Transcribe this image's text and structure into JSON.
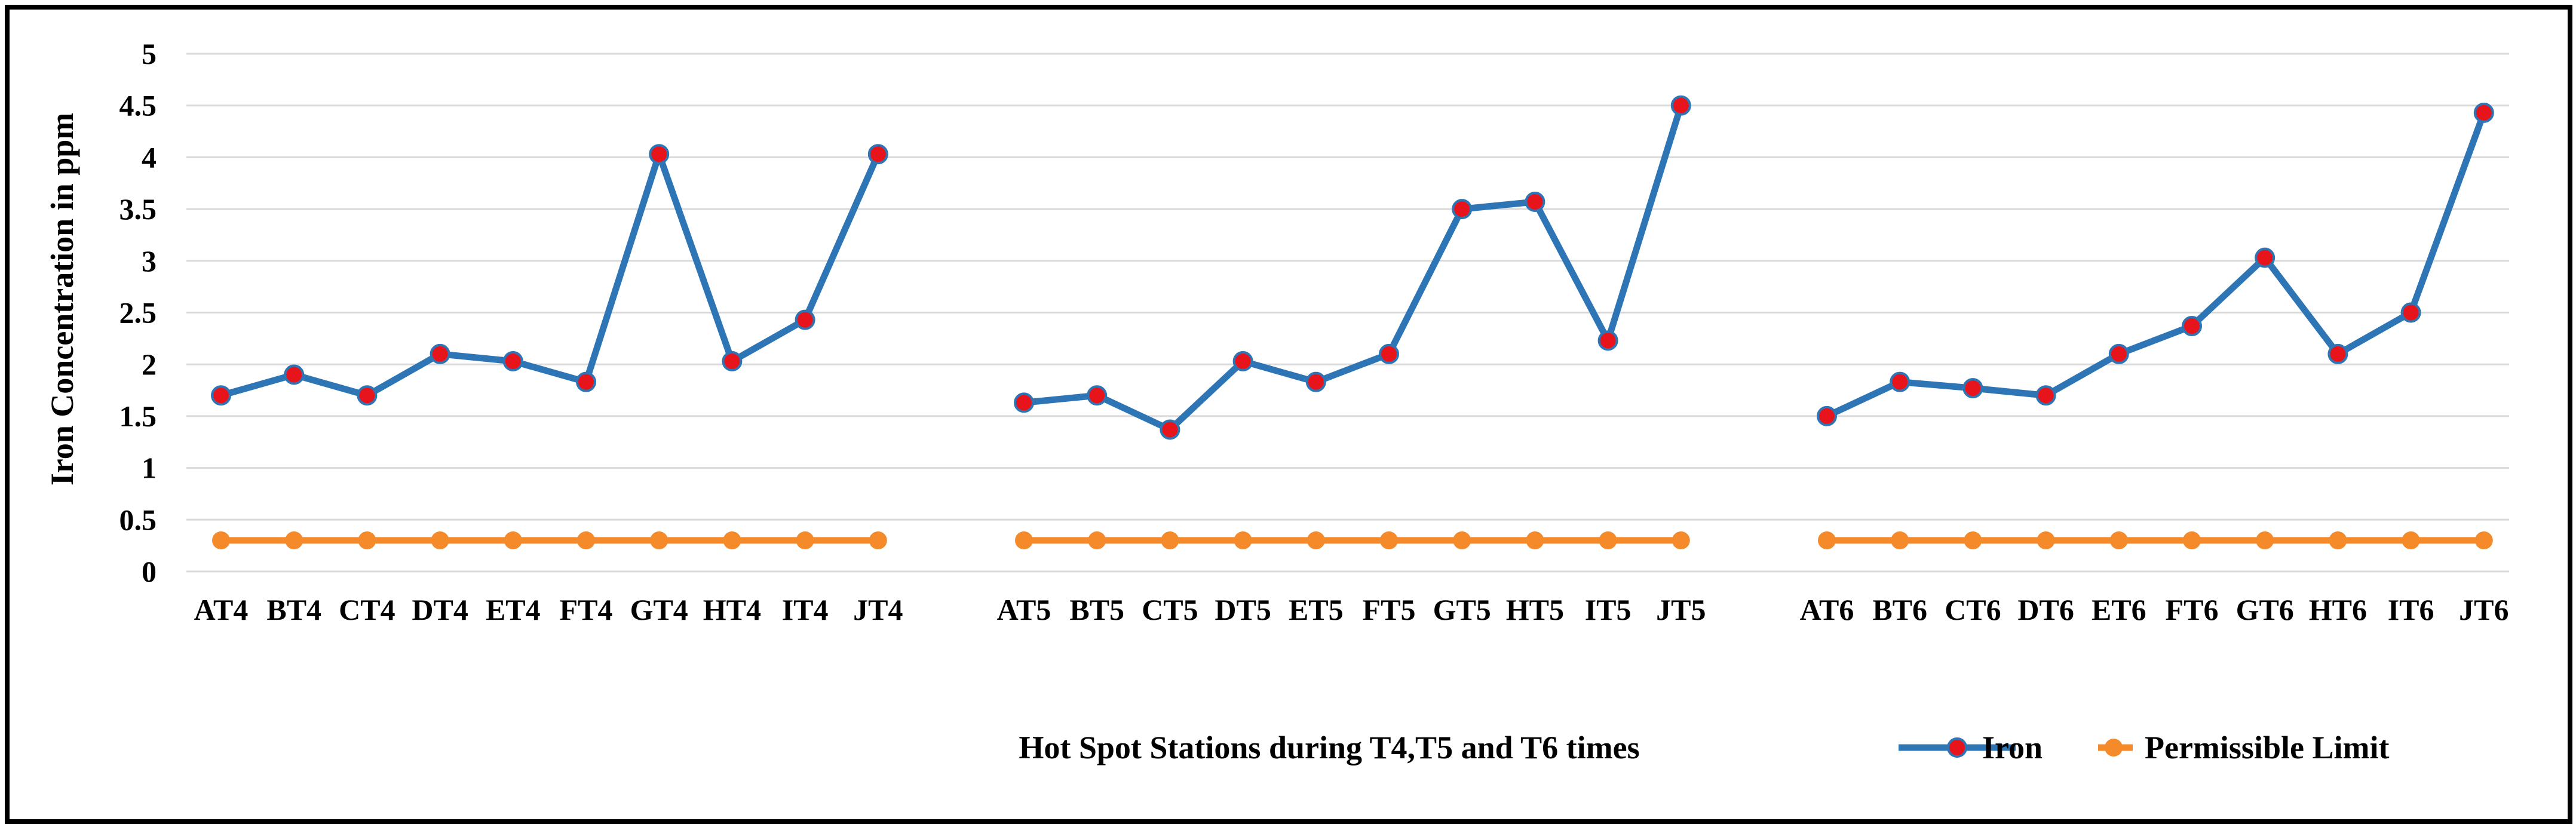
{
  "chart_data": {
    "type": "line",
    "title": "",
    "xlabel": "Hot Spot Stations during T4,T5 and T6 times",
    "ylabel": "Iron Concentration in ppm",
    "ylim": [
      0,
      5
    ],
    "yticks": [
      "0",
      "0.5",
      "1",
      "1.5",
      "2",
      "2.5",
      "3",
      "3.5",
      "4",
      "4.5",
      "5"
    ],
    "grid": "horizontal",
    "legend": "bottom-right",
    "groups": [
      {
        "categories": [
          "AT4",
          "BT4",
          "CT4",
          "DT4",
          "ET4",
          "FT4",
          "GT4",
          "HT4",
          "IT4",
          "JT4"
        ],
        "iron": [
          1.7,
          1.9,
          1.7,
          2.1,
          2.03,
          1.83,
          4.03,
          2.03,
          2.43,
          4.03
        ],
        "limit": [
          0.3,
          0.3,
          0.3,
          0.3,
          0.3,
          0.3,
          0.3,
          0.3,
          0.3,
          0.3
        ]
      },
      {
        "categories": [
          "AT5",
          "BT5",
          "CT5",
          "DT5",
          "ET5",
          "FT5",
          "GT5",
          "HT5",
          "IT5",
          "JT5"
        ],
        "iron": [
          1.63,
          1.7,
          1.37,
          2.03,
          1.83,
          2.1,
          3.5,
          3.57,
          2.23,
          4.5
        ],
        "limit": [
          0.3,
          0.3,
          0.3,
          0.3,
          0.3,
          0.3,
          0.3,
          0.3,
          0.3,
          0.3
        ]
      },
      {
        "categories": [
          "AT6",
          "BT6",
          "CT6",
          "DT6",
          "ET6",
          "FT6",
          "GT6",
          "HT6",
          "IT6",
          "JT6"
        ],
        "iron": [
          1.5,
          1.83,
          1.77,
          1.7,
          2.1,
          2.37,
          3.03,
          2.1,
          2.5,
          4.43
        ],
        "limit": [
          0.3,
          0.3,
          0.3,
          0.3,
          0.3,
          0.3,
          0.3,
          0.3,
          0.3,
          0.3
        ]
      }
    ],
    "series": [
      {
        "name": "Iron",
        "color": "#2E75B6",
        "marker_color": "#E8141C"
      },
      {
        "name": "Permissible Limit",
        "color": "#F58A2A",
        "marker_color": "#F58A2A"
      }
    ]
  }
}
